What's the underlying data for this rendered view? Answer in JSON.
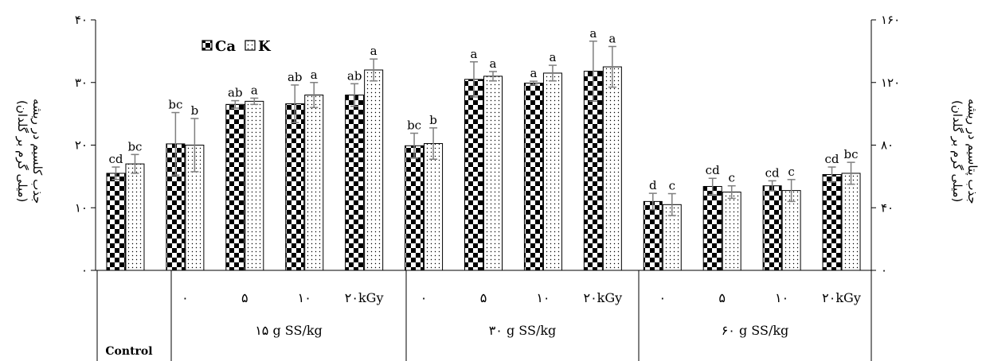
{
  "chart_data": {
    "type": "bar",
    "legend": {
      "placement": "top-left",
      "entries": [
        "Ca",
        "K"
      ]
    },
    "y_left": {
      "label_line1": "جذب کلسیم در ریشه",
      "label_line2": "(میلی گرم بر گلدان)",
      "range": [
        0,
        40
      ],
      "ticks": [
        "۰",
        "۱۰",
        "۲۰",
        "۳۰",
        "۴۰"
      ]
    },
    "y_right": {
      "label_line1": "جذب پتاسیم در ریشه",
      "label_line2": "(میلی گرم بر گلدان)",
      "range": [
        0,
        160
      ],
      "ticks": [
        "۰",
        "۴۰",
        "۸۰",
        "۱۲۰",
        "۱۶۰"
      ]
    },
    "groups": [
      {
        "label": "Control",
        "categories": [
          ""
        ]
      },
      {
        "label": "۱۵ g SS/kg",
        "categories": [
          "۰",
          "۵",
          "۱۰",
          "۲۰kGy"
        ]
      },
      {
        "label": "۳۰ g SS/kg",
        "categories": [
          "۰",
          "۵",
          "۱۰",
          "۲۰kGy"
        ]
      },
      {
        "label": "۶۰ g SS/kg",
        "categories": [
          "۰",
          "۵",
          "۱۰",
          "۲۰kGy"
        ]
      }
    ],
    "series": [
      {
        "name": "Ca",
        "axis": "left",
        "values": [
          15.5,
          20.2,
          26.5,
          26.6,
          28.0,
          19.9,
          30.5,
          29.9,
          31.8,
          11.0,
          13.4,
          13.5,
          15.3
        ],
        "errors": [
          1.0,
          5.0,
          0.6,
          3.0,
          1.8,
          2.0,
          2.8,
          0.3,
          4.8,
          1.3,
          1.3,
          0.8,
          1.2
        ],
        "letters": [
          "cd",
          "bc",
          "ab",
          "ab",
          "ab",
          "bc",
          "a",
          "a",
          "a",
          "d",
          "cd",
          "cd",
          "cd"
        ]
      },
      {
        "name": "K",
        "axis": "right",
        "values": [
          68,
          80,
          108,
          112,
          128,
          81,
          124,
          126,
          130,
          42,
          50,
          51,
          62
        ],
        "errors": [
          6,
          17,
          2,
          8,
          7,
          10,
          3,
          5,
          13,
          7,
          4,
          7,
          7
        ],
        "letters": [
          "bc",
          "b",
          "a",
          "a",
          "a",
          "b",
          "a",
          "a",
          "a",
          "c",
          "c",
          "c",
          "bc"
        ]
      }
    ],
    "colors": {
      "ca_dark": "#000000",
      "ca_light": "#ffffff",
      "k_dot": "#000000",
      "error_bar": "#7f7f7f"
    }
  }
}
